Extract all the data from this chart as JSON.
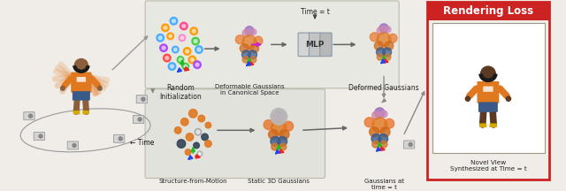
{
  "bg_color": "#f0ede8",
  "upper_panel_color": "#e8e8e2",
  "lower_panel_color": "#e2e2dc",
  "title_box_color": "#cc2222",
  "title_text_color": "#ffffff",
  "title_text": "Rendering Loss",
  "labels": {
    "random_init": "Random\nInitialization",
    "deformable": "Deformable Gaussians\nin Canonical Space",
    "deformed": "Deformed Gaussians",
    "sfm": "Structure-from-Motion",
    "static3d": "Static 3D Gaussians",
    "gaussians_at_t": "Gaussians at\ntime = t",
    "novel_view": "Novel View\nSynthesized at Time = t",
    "time_label": "← Time",
    "time_eq_t": "Time = t",
    "mlp_label": "MLP"
  },
  "scatter_upper": [
    [
      -18,
      -20,
      "#ff9900",
      4.5
    ],
    [
      -8,
      -28,
      "#44aaff",
      4.5
    ],
    [
      4,
      -22,
      "#ff4488",
      4.5
    ],
    [
      16,
      -16,
      "#ff9900",
      4.5
    ],
    [
      -24,
      -8,
      "#44aaff",
      4.5
    ],
    [
      -12,
      -10,
      "#ff9900",
      4.0
    ],
    [
      2,
      -8,
      "#ff88cc",
      4.0
    ],
    [
      18,
      -4,
      "#44cc44",
      4.5
    ],
    [
      -20,
      4,
      "#aa44ff",
      4.5
    ],
    [
      -6,
      6,
      "#44aaff",
      4.0
    ],
    [
      8,
      8,
      "#ff9900",
      4.5
    ],
    [
      22,
      6,
      "#44aaff",
      4.5
    ],
    [
      -16,
      16,
      "#ff4444",
      4.5
    ],
    [
      0,
      18,
      "#44cc44",
      4.0
    ],
    [
      14,
      18,
      "#ff9900",
      4.5
    ],
    [
      -10,
      26,
      "#44aaff",
      4.5
    ],
    [
      6,
      26,
      "#44cc44",
      4.0
    ],
    [
      20,
      24,
      "#aa44ff",
      4.5
    ]
  ],
  "scatter_sfm": [
    [
      0,
      -20,
      "#e07820",
      5
    ],
    [
      10,
      -14,
      "#e07820",
      4
    ],
    [
      -10,
      -10,
      "#e07820",
      4.5
    ],
    [
      18,
      -6,
      "#e07820",
      3.5
    ],
    [
      -18,
      0,
      "#e07820",
      4
    ],
    [
      6,
      2,
      "#aaaaaa",
      4
    ],
    [
      -4,
      8,
      "#e07820",
      4.5
    ],
    [
      14,
      8,
      "#334455",
      4
    ],
    [
      -14,
      16,
      "#334455",
      5
    ],
    [
      4,
      18,
      "#334455",
      3.5
    ],
    [
      18,
      16,
      "#e07820",
      4
    ],
    [
      -6,
      26,
      "#e07820",
      3.5
    ],
    [
      8,
      28,
      "#aaaaaa",
      3
    ]
  ],
  "axis_green": "#22bb22",
  "axis_red": "#ee2222",
  "axis_blue": "#2244ee",
  "axis_magenta": "#cc22cc",
  "arrow_color": "#666666",
  "mlp_colors": [
    "#d4d4d4",
    "#c4c4c4",
    "#b8b8b8"
  ],
  "mlp_border": "#8899aa"
}
